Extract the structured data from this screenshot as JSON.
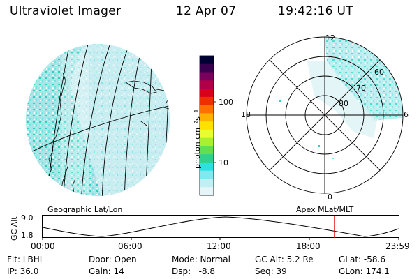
{
  "header": {
    "instrument": "Ultraviolet Imager",
    "date": "12 Apr 07",
    "time": "19:42:16 UT"
  },
  "colorbar": {
    "label": "photon cm⁻²s⁻¹",
    "ticks": [
      "100",
      "10"
    ],
    "colors": [
      "#000033",
      "#3a0050",
      "#7a005e",
      "#b0004a",
      "#d8001c",
      "#ee3000",
      "#ff7000",
      "#ffb000",
      "#ffe000",
      "#e6ff30",
      "#a8f030",
      "#60e050",
      "#30d090",
      "#30e0e0",
      "#80e8ee",
      "#c0f0f4",
      "#e6f6f8"
    ]
  },
  "geo_panel": {
    "label": "Geographic Lat/Lon"
  },
  "polar_panel": {
    "label": "Apex MLat/MLT",
    "mlt_labels": {
      "top": "12",
      "left": "18",
      "right": "6",
      "bottom": "0"
    },
    "mlat_labels": [
      "60",
      "70",
      "80"
    ]
  },
  "altitude": {
    "axis_label": "GC Alt",
    "ymax": "9.0",
    "ymin": "1.8",
    "time_ticks": [
      "00:00",
      "06:00",
      "12:00",
      "18:00",
      "23:59"
    ]
  },
  "status": {
    "flt": "Flt: LBHL",
    "ip": "IP: 36.0",
    "door": "Door: Open",
    "gain": "Gain: 14",
    "mode": "Mode: Normal",
    "dsp": "Dsp:   -8.8",
    "gcalt": "GC Alt: 5.2 Re",
    "seq": "Seq: 39",
    "glat": "GLat: -58.6",
    "glon": "GLon: 174.1"
  }
}
